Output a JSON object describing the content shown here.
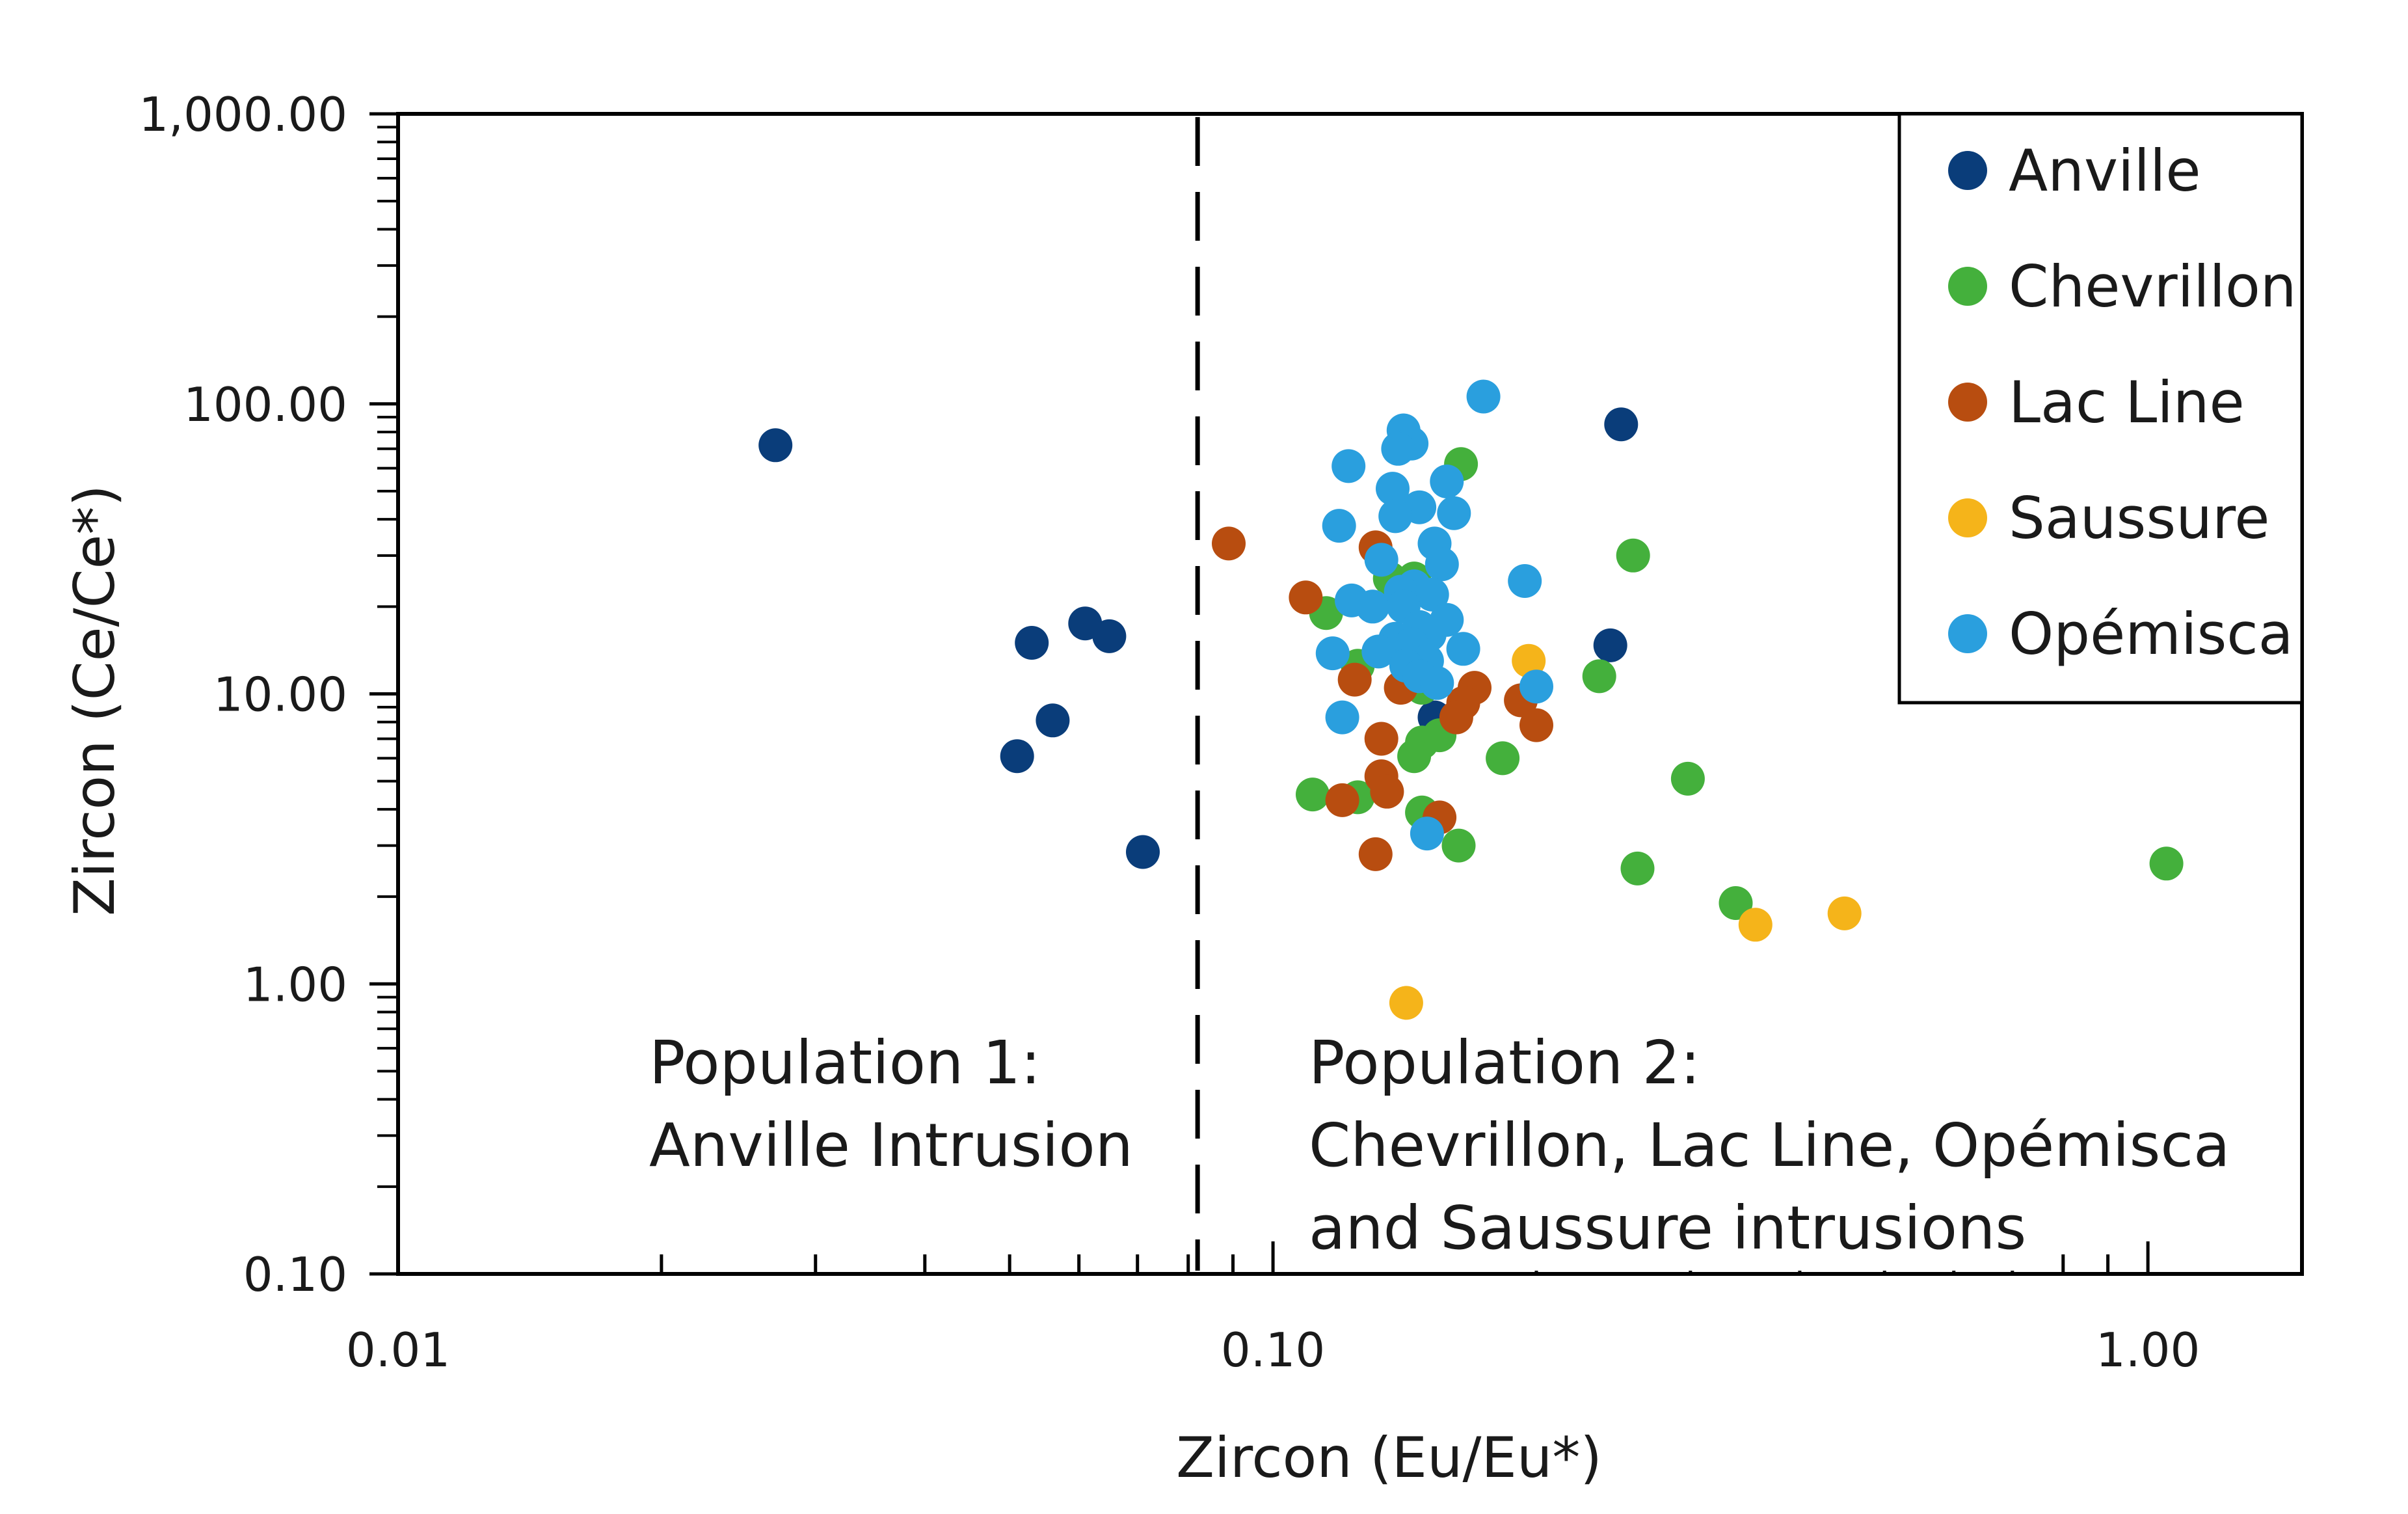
{
  "chart_data": {
    "type": "scatter",
    "title": "",
    "xlabel": "Zircon (Eu/Eu*)",
    "ylabel": "Zircon (Ce/Ce*)",
    "xscale": "log",
    "yscale": "log",
    "xlim": [
      0.01,
      1.5
    ],
    "ylim": [
      0.1,
      1000
    ],
    "x_ticks": [
      {
        "value": 0.01,
        "label": "0.01"
      },
      {
        "value": 0.1,
        "label": "0.10"
      },
      {
        "value": 1,
        "label": "1.00"
      }
    ],
    "y_ticks": [
      {
        "value": 0.1,
        "label": "0.10"
      },
      {
        "value": 1,
        "label": "1.00"
      },
      {
        "value": 10,
        "label": "10.00"
      },
      {
        "value": 100,
        "label": "100.00"
      },
      {
        "value": 1000,
        "label": "1,000.00"
      }
    ],
    "grid": false,
    "legend_position": "top-right",
    "divider_x": 0.082,
    "series": [
      {
        "name": "Anville",
        "color": "#0a3d7a",
        "points": [
          [
            0.027,
            72
          ],
          [
            0.051,
            6.1
          ],
          [
            0.053,
            15
          ],
          [
            0.056,
            8.1
          ],
          [
            0.061,
            17.5
          ],
          [
            0.065,
            15.8
          ],
          [
            0.071,
            2.85
          ],
          [
            0.153,
            8.3
          ],
          [
            0.243,
            14.7
          ],
          [
            0.25,
            85
          ]
        ]
      },
      {
        "name": "Chevrillon",
        "color": "#44b03c",
        "points": [
          [
            0.164,
            62
          ],
          [
            0.258,
            30
          ],
          [
            0.115,
            19
          ],
          [
            0.136,
            25
          ],
          [
            0.145,
            25
          ],
          [
            0.125,
            12.5
          ],
          [
            0.148,
            10.5
          ],
          [
            0.236,
            11.5
          ],
          [
            0.155,
            7.2
          ],
          [
            0.148,
            6.8
          ],
          [
            0.145,
            6.1
          ],
          [
            0.183,
            6
          ],
          [
            0.298,
            5.1
          ],
          [
            0.111,
            4.5
          ],
          [
            0.125,
            4.4
          ],
          [
            0.148,
            3.9
          ],
          [
            0.163,
            3
          ],
          [
            0.261,
            2.5
          ],
          [
            0.338,
            1.9
          ],
          [
            1.05,
            2.6
          ]
        ]
      },
      {
        "name": "Lac Line",
        "color": "#b84d10",
        "points": [
          [
            0.089,
            33
          ],
          [
            0.131,
            32
          ],
          [
            0.109,
            21.5
          ],
          [
            0.124,
            11.2
          ],
          [
            0.14,
            10.5
          ],
          [
            0.17,
            10.5
          ],
          [
            0.165,
            9.3
          ],
          [
            0.192,
            9.5
          ],
          [
            0.162,
            8.3
          ],
          [
            0.2,
            7.8
          ],
          [
            0.133,
            7
          ],
          [
            0.133,
            5.2
          ],
          [
            0.135,
            4.6
          ],
          [
            0.12,
            4.3
          ],
          [
            0.155,
            3.75
          ],
          [
            0.131,
            2.8
          ]
        ]
      },
      {
        "name": "Saussure",
        "color": "#f5b41a",
        "points": [
          [
            0.196,
            13
          ],
          [
            0.356,
            1.6
          ],
          [
            0.45,
            1.75
          ],
          [
            0.142,
            0.86
          ]
        ]
      },
      {
        "name": "Opémisca",
        "color": "#2a9fde",
        "points": [
          [
            0.174,
            106
          ],
          [
            0.141,
            81
          ],
          [
            0.144,
            73
          ],
          [
            0.139,
            70
          ],
          [
            0.122,
            61
          ],
          [
            0.137,
            51
          ],
          [
            0.158,
            54
          ],
          [
            0.147,
            44
          ],
          [
            0.138,
            41
          ],
          [
            0.161,
            42
          ],
          [
            0.119,
            38
          ],
          [
            0.153,
            33
          ],
          [
            0.133,
            29
          ],
          [
            0.156,
            28
          ],
          [
            0.194,
            24.5
          ],
          [
            0.145,
            23.5
          ],
          [
            0.14,
            22.5
          ],
          [
            0.152,
            22
          ],
          [
            0.123,
            21
          ],
          [
            0.13,
            20
          ],
          [
            0.141,
            20
          ],
          [
            0.158,
            18
          ],
          [
            0.147,
            17
          ],
          [
            0.151,
            16
          ],
          [
            0.138,
            15.5
          ],
          [
            0.144,
            14.8
          ],
          [
            0.165,
            14.3
          ],
          [
            0.132,
            14
          ],
          [
            0.117,
            13.8
          ],
          [
            0.15,
            13
          ],
          [
            0.142,
            12.5
          ],
          [
            0.147,
            11.5
          ],
          [
            0.154,
            10.9
          ],
          [
            0.2,
            10.6
          ],
          [
            0.12,
            8.3
          ],
          [
            0.15,
            3.3
          ]
        ]
      }
    ],
    "annotations": [
      {
        "id": "pop1",
        "lines": [
          "Population 1:",
          "Anville Intrusion"
        ]
      },
      {
        "id": "pop2",
        "lines": [
          "Population 2:",
          "Chevrillon, Lac Line, Opémisca",
          "and Saussure intrusions"
        ]
      }
    ]
  }
}
